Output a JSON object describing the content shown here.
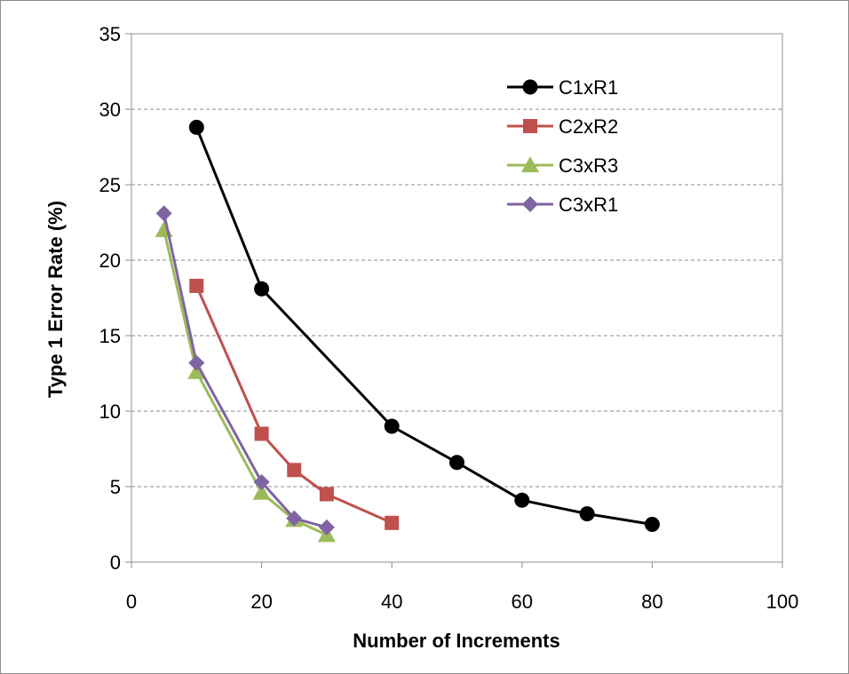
{
  "chart_data": {
    "type": "line",
    "title": "",
    "xlabel": "Number of Increments",
    "ylabel": "Type 1 Error Rate (%)",
    "xlim": [
      0,
      100
    ],
    "ylim": [
      0,
      35
    ],
    "xticks": [
      0,
      20,
      40,
      60,
      80,
      100
    ],
    "yticks": [
      0,
      5,
      10,
      15,
      20,
      25,
      30,
      35
    ],
    "grid": "horizontal dashed",
    "legend_position": "top-right",
    "series": [
      {
        "name": "C1xR1",
        "color": "#000000",
        "marker": "circle",
        "x": [
          10,
          20,
          40,
          50,
          60,
          70,
          80
        ],
        "y": [
          28.8,
          18.1,
          9.0,
          6.6,
          4.1,
          3.2,
          2.5
        ]
      },
      {
        "name": "C2xR2",
        "color": "#c0504d",
        "marker": "square",
        "x": [
          10,
          20,
          25,
          30,
          40
        ],
        "y": [
          18.3,
          8.5,
          6.1,
          4.5,
          2.6
        ]
      },
      {
        "name": "C3xR3",
        "color": "#9bbb59",
        "marker": "triangle",
        "x": [
          5,
          10,
          20,
          25,
          30
        ],
        "y": [
          22.0,
          12.6,
          4.6,
          2.8,
          1.8
        ]
      },
      {
        "name": "C3xR1",
        "color": "#8064a2",
        "marker": "diamond",
        "x": [
          5,
          10,
          20,
          25,
          30
        ],
        "y": [
          23.1,
          13.2,
          5.3,
          2.9,
          2.3
        ]
      }
    ]
  }
}
